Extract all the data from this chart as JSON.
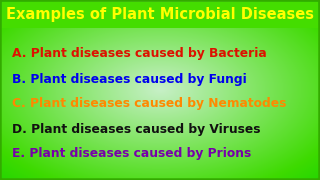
{
  "title": "Examples of Plant Microbial Diseases",
  "title_color": "#FFFF00",
  "title_fontsize": 10.5,
  "title_bg_color": "#44CC00",
  "background_color": "#AAEEBB",
  "border_color": "#33AA00",
  "items": [
    {
      "label": "A. Plant diseases caused by Bacteria",
      "color": "#DD1100"
    },
    {
      "label": "B. Plant diseases caused by Fungi",
      "color": "#0000EE"
    },
    {
      "label": "C. Plant diseases caused by Nematodes",
      "color": "#FF8800"
    },
    {
      "label": "D. Plant diseases caused by Viruses",
      "color": "#111111"
    },
    {
      "label": "E. Plant diseases caused by Prions",
      "color": "#7700AA"
    }
  ],
  "item_fontsize": 8.8,
  "figsize": [
    3.2,
    1.8
  ],
  "dpi": 100
}
